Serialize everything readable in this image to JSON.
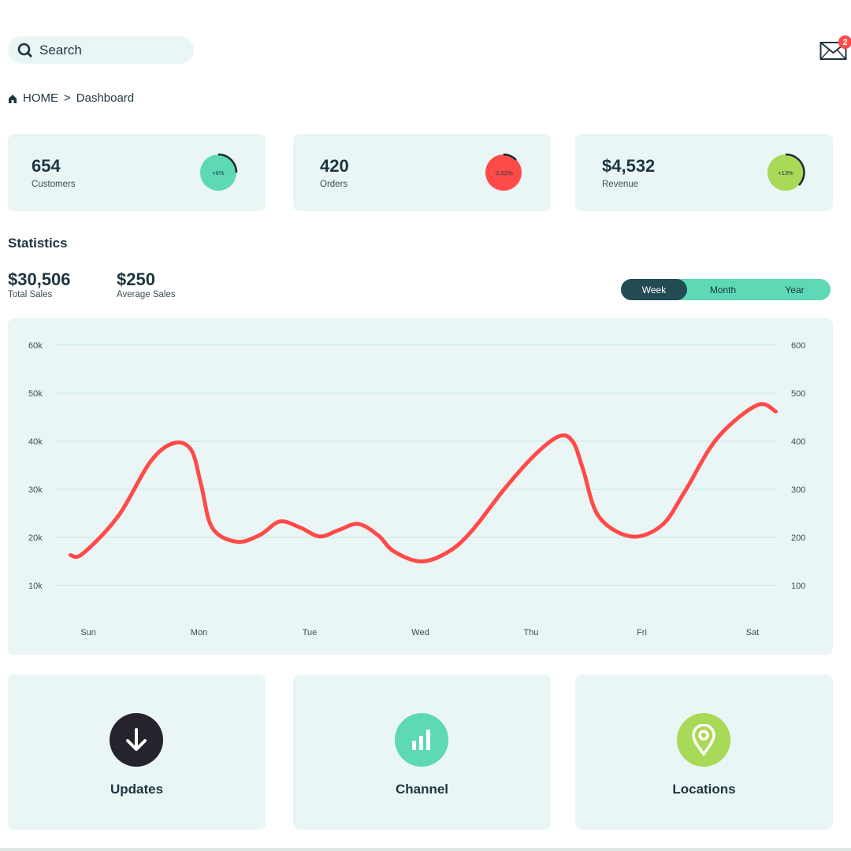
{
  "header": {
    "search_placeholder": "Search",
    "mail_badge": "2",
    "icons": [
      "search-icon",
      "mail-icon"
    ]
  },
  "breadcrumb": {
    "home": "HOME",
    "separator": ">",
    "current": "Dashboard"
  },
  "kpis": [
    {
      "value": "654",
      "label": "Customers",
      "change": "+6%",
      "color": "#5dd9b5"
    },
    {
      "value": "420",
      "label": "Orders",
      "change": "-2.02%",
      "color": "#ff4a4a"
    },
    {
      "value": "$4,532",
      "label": "Revenue",
      "change": "+13%",
      "color": "#a8d957"
    }
  ],
  "statistics": {
    "title": "Statistics",
    "total_sales": "$30,506",
    "total_sales_label": "Total Sales",
    "average_sales": "$250",
    "average_sales_label": "Average Sales",
    "periods": [
      "Week",
      "Month",
      "Year"
    ],
    "selected_period": "Week"
  },
  "chart_data": {
    "type": "line",
    "categories": [
      "Sun",
      "Mon",
      "Tue",
      "Wed",
      "Thu",
      "Fri",
      "Sat"
    ],
    "y_left_ticks": [
      "10k",
      "20k",
      "30k",
      "40k",
      "50k",
      "60k"
    ],
    "y_right_ticks": [
      "100",
      "200",
      "300",
      "400",
      "500",
      "600"
    ],
    "ylim": [
      10,
      60
    ],
    "grid": true,
    "line_color": "#ff4a4a",
    "series": [
      {
        "x": [
          -0.16,
          -0.05,
          0.27,
          0.56,
          0.77,
          0.93,
          1.02,
          1.12,
          1.34,
          1.55,
          1.73,
          1.91,
          2.09,
          2.26,
          2.44,
          2.62,
          2.76,
          3.01,
          3.26,
          3.47,
          3.76,
          4.04,
          4.26,
          4.38,
          4.47,
          4.61,
          4.9,
          5.18,
          5.39,
          5.68,
          6.04,
          6.21
        ],
        "y": [
          16.3,
          16.6,
          24.4,
          35.7,
          39.6,
          38.2,
          30.9,
          22.0,
          19.1,
          20.5,
          23.3,
          22.1,
          20.2,
          21.5,
          22.8,
          20.4,
          17.1,
          15.0,
          17.1,
          21.5,
          30.1,
          37.3,
          41.1,
          39.8,
          34.1,
          24.4,
          20.2,
          22.5,
          29.6,
          40.6,
          47.5,
          46.2
        ]
      }
    ]
  },
  "shortcuts": [
    {
      "label": "Updates",
      "icon": "arrow-down-icon",
      "color": "#25232e"
    },
    {
      "label": "Channel",
      "icon": "bar-chart-icon",
      "color": "#5dd9b5"
    },
    {
      "label": "Locations",
      "icon": "location-pin-icon",
      "color": "#a8d957"
    }
  ]
}
